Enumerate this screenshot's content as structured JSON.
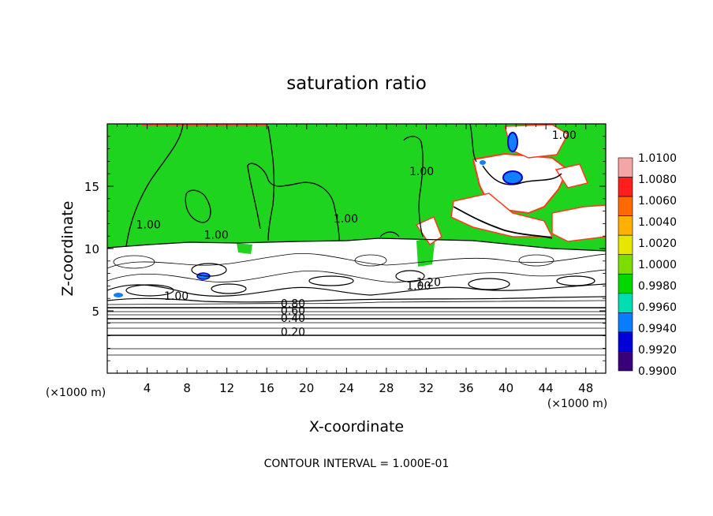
{
  "chart_data": {
    "type": "heatmap",
    "title": "saturation ratio",
    "xlabel": "X-coordinate",
    "ylabel": "Z-coordinate",
    "x_unit": "(×1000 m)",
    "z_unit": "(×1000 m)",
    "xlim": [
      0,
      50
    ],
    "ylim": [
      0,
      20
    ],
    "x_ticks": [
      4,
      8,
      12,
      16,
      20,
      24,
      28,
      32,
      36,
      40,
      44,
      48
    ],
    "y_ticks": [
      5,
      10,
      15
    ],
    "colorbar_levels": [
      "1.0100",
      "1.0080",
      "1.0060",
      "1.0040",
      "1.0020",
      "1.0000",
      "0.9980",
      "0.9960",
      "0.9940",
      "0.9920",
      "0.9900"
    ],
    "colorbar_colors": [
      "#f4a6a6",
      "#ff1e1e",
      "#ff6a00",
      "#ffb000",
      "#e6e600",
      "#7ddc00",
      "#00d800",
      "#00ddb0",
      "#0a7cff",
      "#0000d8",
      "#3a0078"
    ],
    "contour_labels": [
      {
        "text": "0.20",
        "x": 17.4,
        "z": 3.0
      },
      {
        "text": "0.40",
        "x": 17.4,
        "z": 4.1
      },
      {
        "text": "0.60",
        "x": 17.4,
        "z": 4.7
      },
      {
        "text": "0.80",
        "x": 17.4,
        "z": 5.3
      },
      {
        "text": "1.00",
        "x": 5.7,
        "z": 5.9
      },
      {
        "text": "1.00",
        "x": 2.9,
        "z": 11.6
      },
      {
        "text": "1.00",
        "x": 9.7,
        "z": 10.8
      },
      {
        "text": "1.00",
        "x": 22.7,
        "z": 12.1
      },
      {
        "text": "1.00",
        "x": 30.3,
        "z": 15.9
      },
      {
        "text": "1.00",
        "x": 44.6,
        "z": 18.8
      },
      {
        "text": "1.00",
        "x": 30.0,
        "z": 6.7
      },
      {
        "text": "1.20",
        "x": 31.0,
        "z": 7.0
      }
    ],
    "footer": "CONTOUR INTERVAL = 1.000E-01"
  }
}
